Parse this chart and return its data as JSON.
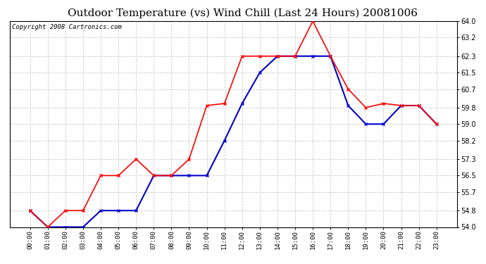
{
  "title": "Outdoor Temperature (vs) Wind Chill (Last 24 Hours) 20081006",
  "copyright": "Copyright 2008 Cartronics.com",
  "x_labels": [
    "00:00",
    "01:00",
    "02:00",
    "03:00",
    "04:00",
    "05:00",
    "06:00",
    "07:00",
    "08:00",
    "09:00",
    "10:00",
    "11:00",
    "12:00",
    "13:00",
    "14:00",
    "15:00",
    "16:00",
    "17:00",
    "18:00",
    "19:00",
    "20:00",
    "21:00",
    "22:00",
    "23:00"
  ],
  "temp_red": [
    54.8,
    54.0,
    54.8,
    54.8,
    56.5,
    56.5,
    57.3,
    56.5,
    56.5,
    57.3,
    59.9,
    60.0,
    62.3,
    62.3,
    62.3,
    62.3,
    64.0,
    62.3,
    60.7,
    59.8,
    60.0,
    59.9,
    59.9,
    59.0
  ],
  "wind_blue": [
    54.8,
    54.0,
    54.0,
    54.0,
    54.8,
    54.8,
    54.8,
    56.5,
    56.5,
    56.5,
    56.5,
    58.2,
    60.0,
    61.5,
    62.3,
    62.3,
    62.3,
    62.3,
    59.9,
    59.0,
    59.0,
    59.9,
    59.9,
    59.0
  ],
  "ylim": [
    54.0,
    64.0
  ],
  "yticks": [
    54.0,
    54.8,
    55.7,
    56.5,
    57.3,
    58.2,
    59.0,
    59.8,
    60.7,
    61.5,
    62.3,
    63.2,
    64.0
  ],
  "red_color": "#ff0000",
  "blue_color": "#0000cc",
  "grid_color": "#cccccc",
  "bg_color": "#ffffff",
  "plot_bg": "#ffffff",
  "title_fontsize": 11,
  "copyright_fontsize": 6.5
}
